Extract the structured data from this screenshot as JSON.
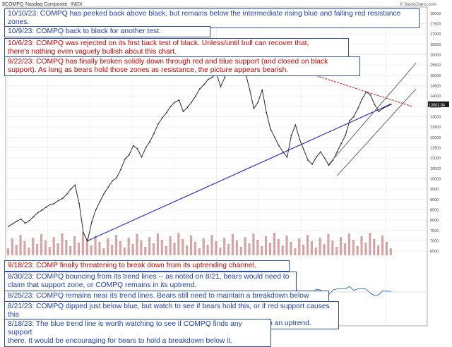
{
  "header": {
    "symbol": "$COMPQ",
    "name": "Nasdaq Composite",
    "exchange": "INDX",
    "source": "© StockCharts.com"
  },
  "notes": [
    {
      "id": "n1",
      "color": "blue",
      "text": "10/10/23:  COMPQ has peeked back above black, but remains below the intermediate rising blue and falling red resistance zones."
    },
    {
      "id": "n2",
      "color": "blue",
      "text": "10/9/23:  COMPQ back to black for another test."
    },
    {
      "id": "n3",
      "color": "red",
      "text": "10/6/23:  COMPQ was rejected on its first back test of black.  Unless/until bull can recover that,\nthere's nothing even vaguely bullish about this chart."
    },
    {
      "id": "n4",
      "color": "red",
      "text": "9/22/23:  COMPQ has finally broken solidly down through red and blue support (and closed on black\nsupport).  As long as bears hold those zones as resistance, the picture appears bearish."
    },
    {
      "id": "n5",
      "color": "red",
      "text": "9/18/23:  COMP finally threatening to break down from its uptrending channel."
    },
    {
      "id": "n6",
      "color": "blue",
      "text": "8/30/23:  COMPQ bouncing from its trend lines -- as noted on 8/21, bears would need to\nclaim that support zone, or COMPQ remains in its uptrend."
    },
    {
      "id": "n7",
      "color": "blue",
      "text": "8/25/23:  COMPQ remains near its trend lines.  Bears still need to maintain a breakdown below those lines."
    },
    {
      "id": "n8",
      "color": "blue",
      "text": "8/21/23:  COMPQ dipped just below blue, but watch to see if bears hold this, or if red support causes this\nbreakdown to whipsaw.  From the perspective of the red channel, COMPQ is still in an uptrend."
    },
    {
      "id": "n9",
      "color": "blue",
      "text": "8/18/23:  The blue trend line is worth watching to see if COMPQ finds any support\nthere.  It would be encouraging for bears to hold a breakdown below it."
    }
  ],
  "chart_data": {
    "type": "line",
    "series": [
      {
        "values": [
          7700,
          7820,
          7950,
          8050,
          7850,
          7980,
          8160,
          8350,
          8480,
          8620,
          8750,
          8800,
          8950,
          9050,
          9250,
          9500,
          9700,
          8800,
          7400,
          7000,
          7900,
          8500,
          8900,
          9300,
          9600,
          9900,
          10050,
          10450,
          10950,
          11150,
          11600,
          11450,
          11050,
          11500,
          11800,
          12200,
          12650,
          12950,
          13200,
          13500,
          13700,
          13800,
          13250,
          13450,
          13700,
          14000,
          14350,
          14550,
          14800,
          14900,
          15100,
          14450,
          14900,
          15400,
          15800,
          16100,
          15600,
          15100,
          14300,
          13400,
          13700,
          14300,
          13200,
          12400,
          12000,
          11600,
          11300,
          11050,
          12100,
          12600,
          11900,
          11400,
          10900,
          10700,
          11050,
          11300,
          11000,
          10650,
          10900,
          11300,
          11700,
          12100,
          12800,
          13000,
          13400,
          13850,
          14200,
          14050,
          13600,
          13250,
          13400,
          13500,
          13600
        ]
      }
    ],
    "yticks": [
      18000,
      17500,
      17000,
      16500,
      16000,
      15500,
      15000,
      14500,
      14000,
      13500,
      13000,
      12500,
      12000,
      11500,
      11000,
      10500,
      10000,
      9500,
      9000,
      8500,
      8000,
      7500,
      7000,
      6500
    ],
    "ylim": [
      6300,
      18300
    ],
    "last_price_label": "13562.84",
    "trend_lines": [
      {
        "name": "blue",
        "color": "#2020d0",
        "from": {
          "i": 19,
          "v": 7000
        },
        "to": {
          "i": 92,
          "v": 13620
        }
      },
      {
        "name": "red",
        "color": "#e02020",
        "from": {
          "i": 55,
          "v": 16200
        },
        "to": {
          "i": 97,
          "v": 13500
        }
      },
      {
        "name": "black channel upper",
        "color": "#707070",
        "from": {
          "i": 77,
          "v": 10700
        },
        "to": {
          "i": 98,
          "v": 15600
        }
      },
      {
        "name": "black channel lower",
        "color": "#707070",
        "from": {
          "i": 79,
          "v": 10150
        },
        "to": {
          "i": 98,
          "v": 14350
        }
      }
    ],
    "grid": true,
    "legend": "none"
  },
  "colors": {
    "note_border": "#2c4fa8",
    "note_blue_text": "#1f3fb8",
    "note_red_text": "#d40000",
    "price": "#2a2a2a",
    "volume": "#b35b5b",
    "indicator": "#2a6fc0"
  }
}
